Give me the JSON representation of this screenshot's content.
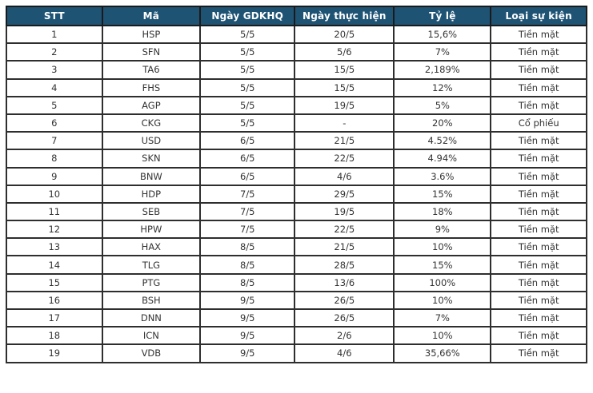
{
  "colors": {
    "header_bg": "#1F5374",
    "header_text": "#FFFFFF",
    "cell_text": "#333333",
    "grid_border": "#2E2E2E",
    "outer_border": "#1A1A1A",
    "row_bg": "#FFFFFF"
  },
  "table": {
    "columns": [
      "STT",
      "Mã",
      "Ngày GDKHQ",
      "Ngày thực hiện",
      "Tỷ lệ",
      "Loại sự kiện"
    ],
    "rows": [
      [
        "1",
        "HSP",
        "5/5",
        "20/5",
        "15,6%",
        "Tiền mặt"
      ],
      [
        "2",
        "SFN",
        "5/5",
        "5/6",
        "7%",
        "Tiền mặt"
      ],
      [
        "3",
        "TA6",
        "5/5",
        "15/5",
        "2,189%",
        "Tiền mặt"
      ],
      [
        "4",
        "FHS",
        "5/5",
        "15/5",
        "12%",
        "Tiền mặt"
      ],
      [
        "5",
        "AGP",
        "5/5",
        "19/5",
        "5%",
        "Tiền mặt"
      ],
      [
        "6",
        "CKG",
        "5/5",
        "-",
        "20%",
        "Cổ phiếu"
      ],
      [
        "7",
        "USD",
        "6/5",
        "21/5",
        "4.52%",
        "Tiền mặt"
      ],
      [
        "8",
        "SKN",
        "6/5",
        "22/5",
        "4.94%",
        "Tiền mặt"
      ],
      [
        "9",
        "BNW",
        "6/5",
        "4/6",
        "3.6%",
        "Tiền mặt"
      ],
      [
        "10",
        "HDP",
        "7/5",
        "29/5",
        "15%",
        "Tiền mặt"
      ],
      [
        "11",
        "SEB",
        "7/5",
        "19/5",
        "18%",
        "Tiền mặt"
      ],
      [
        "12",
        "HPW",
        "7/5",
        "22/5",
        "9%",
        "Tiền mặt"
      ],
      [
        "13",
        "HAX",
        "8/5",
        "21/5",
        "10%",
        "Tiền mặt"
      ],
      [
        "14",
        "TLG",
        "8/5",
        "28/5",
        "15%",
        "Tiền mặt"
      ],
      [
        "15",
        "PTG",
        "8/5",
        "13/6",
        "100%",
        "Tiền mặt"
      ],
      [
        "16",
        "BSH",
        "9/5",
        "26/5",
        "10%",
        "Tiền mặt"
      ],
      [
        "17",
        "DNN",
        "9/5",
        "26/5",
        "7%",
        "Tiền mặt"
      ],
      [
        "18",
        "ICN",
        "9/5",
        "2/6",
        "10%",
        "Tiền mặt"
      ],
      [
        "19",
        "VDB",
        "9/5",
        "4/6",
        "35,66%",
        "Tiền mặt"
      ]
    ]
  },
  "chart_data": {
    "type": "table",
    "title": "",
    "columns": [
      "STT",
      "Mã",
      "Ngày GDKHQ",
      "Ngày thực hiện",
      "Tỷ lệ",
      "Loại sự kiện"
    ],
    "rows": [
      [
        "1",
        "HSP",
        "5/5",
        "20/5",
        "15,6%",
        "Tiền mặt"
      ],
      [
        "2",
        "SFN",
        "5/5",
        "5/6",
        "7%",
        "Tiền mặt"
      ],
      [
        "3",
        "TA6",
        "5/5",
        "15/5",
        "2,189%",
        "Tiền mặt"
      ],
      [
        "4",
        "FHS",
        "5/5",
        "15/5",
        "12%",
        "Tiền mặt"
      ],
      [
        "5",
        "AGP",
        "5/5",
        "19/5",
        "5%",
        "Tiền mặt"
      ],
      [
        "6",
        "CKG",
        "5/5",
        "-",
        "20%",
        "Cổ phiếu"
      ],
      [
        "7",
        "USD",
        "6/5",
        "21/5",
        "4.52%",
        "Tiền mặt"
      ],
      [
        "8",
        "SKN",
        "6/5",
        "22/5",
        "4.94%",
        "Tiền mặt"
      ],
      [
        "9",
        "BNW",
        "6/5",
        "4/6",
        "3.6%",
        "Tiền mặt"
      ],
      [
        "10",
        "HDP",
        "7/5",
        "29/5",
        "15%",
        "Tiền mặt"
      ],
      [
        "11",
        "SEB",
        "7/5",
        "19/5",
        "18%",
        "Tiền mặt"
      ],
      [
        "12",
        "HPW",
        "7/5",
        "22/5",
        "9%",
        "Tiền mặt"
      ],
      [
        "13",
        "HAX",
        "8/5",
        "21/5",
        "10%",
        "Tiền mặt"
      ],
      [
        "14",
        "TLG",
        "8/5",
        "28/5",
        "15%",
        "Tiền mặt"
      ],
      [
        "15",
        "PTG",
        "8/5",
        "13/6",
        "100%",
        "Tiền mặt"
      ],
      [
        "16",
        "BSH",
        "9/5",
        "26/5",
        "10%",
        "Tiền mặt"
      ],
      [
        "17",
        "DNN",
        "9/5",
        "26/5",
        "7%",
        "Tiền mặt"
      ],
      [
        "18",
        "ICN",
        "9/5",
        "2/6",
        "10%",
        "Tiền mặt"
      ],
      [
        "19",
        "VDB",
        "9/5",
        "4/6",
        "35,66%",
        "Tiền mặt"
      ]
    ]
  }
}
